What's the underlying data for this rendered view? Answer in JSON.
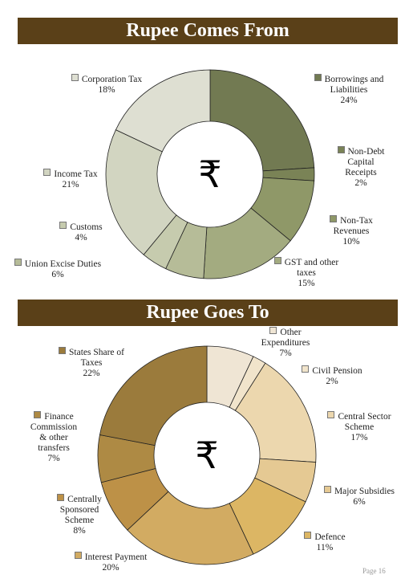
{
  "page": {
    "number_label": "Page  16"
  },
  "chart_data": [
    {
      "type": "pie",
      "title": "Rupee Comes From",
      "center_symbol": "₹",
      "series": [
        {
          "label_lines": [
            "Borrowings and",
            "Liabilities"
          ],
          "value": 24,
          "value_label": "24%",
          "color": "#727a52"
        },
        {
          "label_lines": [
            "Non-Debt",
            "Capital",
            "Receipts"
          ],
          "value": 2,
          "value_label": "2%",
          "color": "#7a8356"
        },
        {
          "label_lines": [
            "Non-Tax",
            "Revenues"
          ],
          "value": 10,
          "value_label": "10%",
          "color": "#8f9868"
        },
        {
          "label_lines": [
            "GST and other",
            "taxes"
          ],
          "value": 15,
          "value_label": "15%",
          "color": "#a3ab80"
        },
        {
          "label_lines": [
            "Union Excise Duties"
          ],
          "value": 6,
          "value_label": "6%",
          "color": "#b6bc98"
        },
        {
          "label_lines": [
            "Customs"
          ],
          "value": 4,
          "value_label": "4%",
          "color": "#c6cbae"
        },
        {
          "label_lines": [
            "Income Tax"
          ],
          "value": 21,
          "value_label": "21%",
          "color": "#d2d5c1"
        },
        {
          "label_lines": [
            "Corporation Tax"
          ],
          "value": 18,
          "value_label": "18%",
          "color": "#dedfd2"
        }
      ]
    },
    {
      "type": "pie",
      "title": "Rupee Goes To",
      "center_symbol": "₹",
      "series": [
        {
          "label_lines": [
            "Other",
            "Expenditures"
          ],
          "value": 7,
          "value_label": "7%",
          "color": "#efe5d4"
        },
        {
          "label_lines": [
            "Civil Pension"
          ],
          "value": 2,
          "value_label": "2%",
          "color": "#f1e4cb"
        },
        {
          "label_lines": [
            "Central Sector",
            "Scheme"
          ],
          "value": 17,
          "value_label": "17%",
          "color": "#ecd7ae"
        },
        {
          "label_lines": [
            "Major Subsidies"
          ],
          "value": 6,
          "value_label": "6%",
          "color": "#e5c993"
        },
        {
          "label_lines": [
            "Defence"
          ],
          "value": 11,
          "value_label": "11%",
          "color": "#dcb664"
        },
        {
          "label_lines": [
            "Interest Payment"
          ],
          "value": 20,
          "value_label": "20%",
          "color": "#d2ab62"
        },
        {
          "label_lines": [
            "Centrally",
            "Sponsored",
            "Scheme"
          ],
          "value": 8,
          "value_label": "8%",
          "color": "#bd9147"
        },
        {
          "label_lines": [
            "Finance",
            "Commission",
            "& other",
            "transfers"
          ],
          "value": 7,
          "value_label": "7%",
          "color": "#ae8a44"
        },
        {
          "label_lines": [
            "States Share of",
            "Taxes"
          ],
          "value": 22,
          "value_label": "22%",
          "color": "#9b7b3c"
        }
      ]
    }
  ]
}
